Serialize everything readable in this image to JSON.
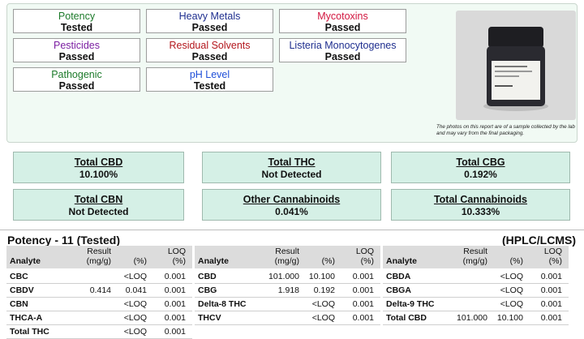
{
  "tests": [
    {
      "name": "Potency",
      "status": "Tested",
      "color": "#1c7a2a"
    },
    {
      "name": "Heavy Metals",
      "status": "Passed",
      "color": "#1f2f8f"
    },
    {
      "name": "Mycotoxins",
      "status": "Passed",
      "color": "#d2163f"
    },
    {
      "name": "Pesticides",
      "status": "Passed",
      "color": "#7b1fa2"
    },
    {
      "name": "Residual Solvents",
      "status": "Passed",
      "color": "#b3161c"
    },
    {
      "name": "Listeria Monocytogenes",
      "status": "Passed",
      "color": "#1f2f8f"
    },
    {
      "name": "Pathogenic",
      "status": "Passed",
      "color": "#1c7a2a"
    },
    {
      "name": "pH Level",
      "status": "Tested",
      "color": "#1f4fd8"
    }
  ],
  "photo_caption": "The photos on this report are of a sample collected by the lab and may vary from the final packaging.",
  "totals": [
    {
      "label": "Total CBD",
      "value": "10.100%"
    },
    {
      "label": "Total THC",
      "value": "Not Detected"
    },
    {
      "label": "Total CBG",
      "value": "0.192%"
    },
    {
      "label": "Total CBN",
      "value": "Not Detected"
    },
    {
      "label": "Other Cannabinoids",
      "value": "0.041%"
    },
    {
      "label": "Total Cannabinoids",
      "value": "10.333%"
    }
  ],
  "potency": {
    "title": "Potency - 11 (Tested)",
    "method": "(HPLC/LCMS)",
    "headers": [
      [
        "Analyte"
      ],
      [
        "Result",
        "(mg/g)"
      ],
      [
        "(%)"
      ],
      [
        "LOQ",
        "(%)"
      ]
    ],
    "tables": [
      [
        [
          "CBC",
          null,
          "<LOQ",
          "0.001"
        ],
        [
          "CBDV",
          "0.414",
          "0.041",
          "0.001"
        ],
        [
          "CBN",
          null,
          "<LOQ",
          "0.001"
        ],
        [
          "THCA-A",
          null,
          "<LOQ",
          "0.001"
        ],
        [
          "Total THC",
          null,
          "<LOQ",
          "0.001"
        ]
      ],
      [
        [
          "CBD",
          "101.000",
          "10.100",
          "0.001"
        ],
        [
          "CBG",
          "1.918",
          "0.192",
          "0.001"
        ],
        [
          "Delta-8 THC",
          null,
          "<LOQ",
          "0.001"
        ],
        [
          "THCV",
          null,
          "<LOQ",
          "0.001"
        ]
      ],
      [
        [
          "CBDA",
          null,
          "<LOQ",
          "0.001"
        ],
        [
          "CBGA",
          null,
          "<LOQ",
          "0.001"
        ],
        [
          "Delta-9 THC",
          null,
          "<LOQ",
          "0.001"
        ],
        [
          "Total CBD",
          "101.000",
          "10.100",
          "0.001"
        ]
      ]
    ]
  }
}
